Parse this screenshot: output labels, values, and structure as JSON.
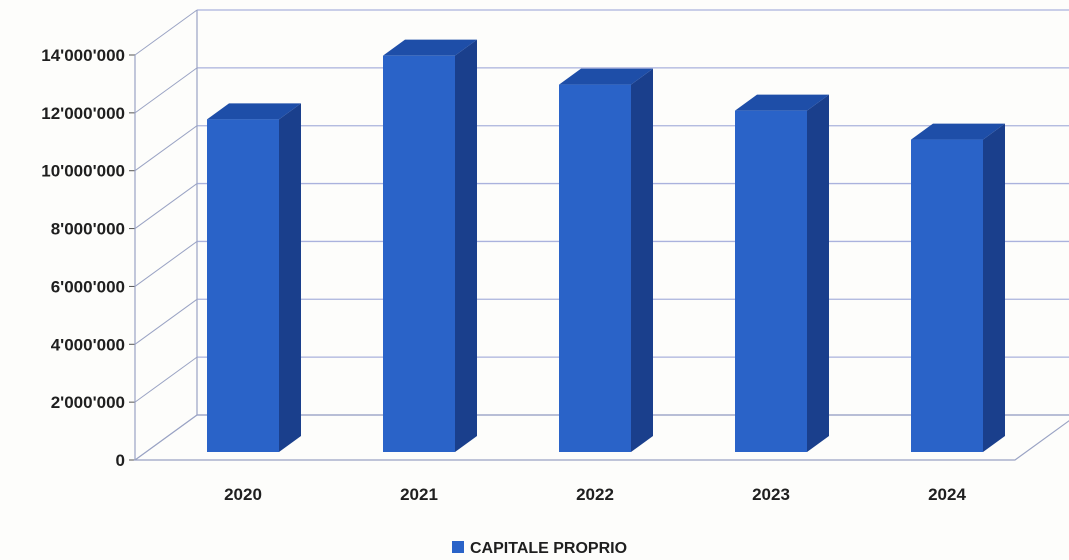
{
  "chart_data": {
    "type": "bar",
    "style": "3d-column",
    "title": "",
    "xlabel": "",
    "ylabel": "",
    "categories": [
      "2020",
      "2021",
      "2022",
      "2023",
      "2024"
    ],
    "series": [
      {
        "name": "CAPITALE PROPRIO",
        "values": [
          11500000,
          13700000,
          12700000,
          11800000,
          10800000
        ]
      }
    ],
    "ylim": [
      0,
      14000000
    ],
    "yticks": [
      0,
      2000000,
      4000000,
      6000000,
      8000000,
      10000000,
      12000000,
      14000000
    ],
    "ytick_labels": [
      "0",
      "2'000'000",
      "4'000'000",
      "6'000'000",
      "8'000'000",
      "10'000'000",
      "12'000'000",
      "14'000'000"
    ],
    "grid": true,
    "legend_position": "bottom",
    "colors": {
      "bar_front": "#2a63c8",
      "bar_side": "#1a3f8c",
      "bar_top": "#1e4ea8",
      "gridline": "#aab2dd",
      "wall": "#9aa3c4"
    }
  }
}
